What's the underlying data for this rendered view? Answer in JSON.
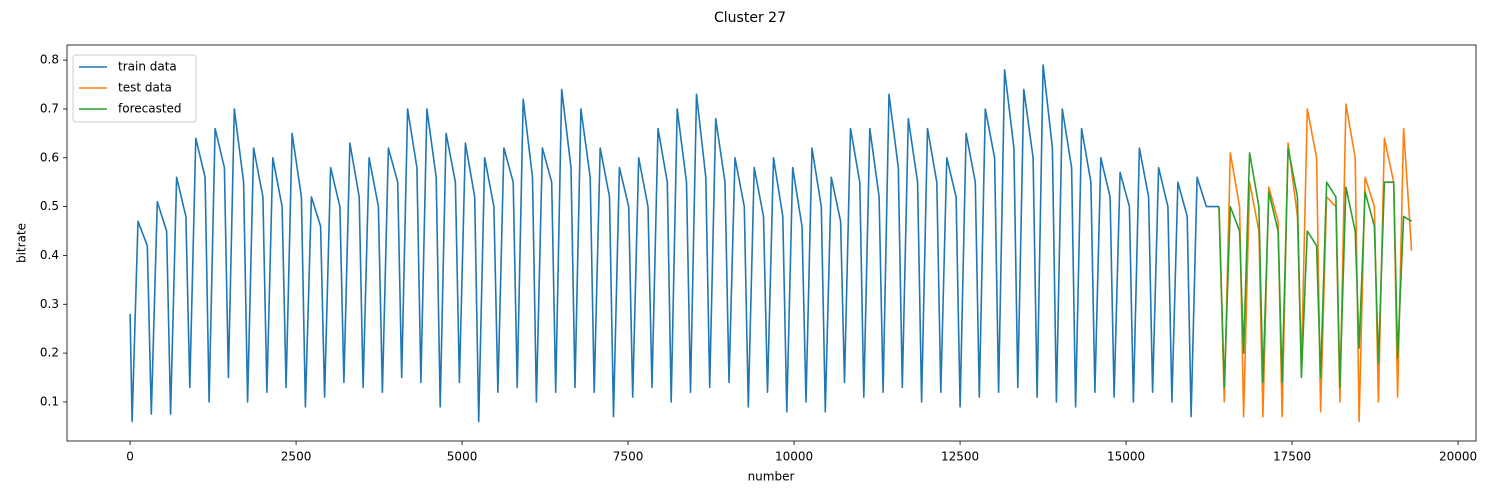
{
  "chart_data": {
    "type": "line",
    "title": "Cluster 27",
    "x_label": "number",
    "y_label": "bitrate",
    "xlim": [
      -950,
      20270
    ],
    "ylim": [
      0.02,
      0.831
    ],
    "xticks": [
      0,
      2500,
      5000,
      7500,
      10000,
      12500,
      15000,
      17500,
      20000
    ],
    "yticks": [
      0.1,
      0.2,
      0.3,
      0.4,
      0.5,
      0.6,
      0.7,
      0.8
    ],
    "legend": "upper left",
    "series": [
      {
        "name": "train data",
        "color": "#1f77b4",
        "x": [
          0,
          30,
          120,
          260,
          320,
          410,
          550,
          610,
          700,
          840,
          900,
          990,
          1130,
          1190,
          1280,
          1420,
          1480,
          1570,
          1710,
          1770,
          1860,
          2000,
          2060,
          2150,
          2290,
          2350,
          2440,
          2580,
          2640,
          2730,
          2870,
          2930,
          3020,
          3160,
          3220,
          3310,
          3450,
          3510,
          3600,
          3740,
          3800,
          3890,
          4030,
          4090,
          4180,
          4320,
          4380,
          4470,
          4610,
          4670,
          4760,
          4900,
          4960,
          5050,
          5190,
          5250,
          5340,
          5480,
          5540,
          5630,
          5770,
          5830,
          5920,
          6060,
          6120,
          6210,
          6350,
          6410,
          6500,
          6640,
          6700,
          6790,
          6930,
          6990,
          7080,
          7220,
          7280,
          7370,
          7510,
          7570,
          7660,
          7800,
          7860,
          7950,
          8090,
          8150,
          8240,
          8380,
          8440,
          8530,
          8670,
          8730,
          8820,
          8960,
          9020,
          9110,
          9250,
          9310,
          9400,
          9540,
          9600,
          9690,
          9830,
          9890,
          9980,
          10120,
          10180,
          10270,
          10410,
          10470,
          10560,
          10700,
          10760,
          10850,
          10990,
          11050,
          11140,
          11280,
          11340,
          11430,
          11570,
          11630,
          11720,
          11860,
          11920,
          12010,
          12150,
          12210,
          12300,
          12440,
          12500,
          12590,
          12730,
          12790,
          12880,
          13020,
          13080,
          13170,
          13310,
          13370,
          13460,
          13600,
          13660,
          13750,
          13890,
          13950,
          14040,
          14180,
          14240,
          14330,
          14470,
          14530,
          14620,
          14760,
          14820,
          14910,
          15050,
          15110,
          15200,
          15340,
          15400,
          15490,
          15630,
          15690,
          15780,
          15920,
          15980,
          16070,
          16210,
          16400
        ],
        "values": [
          0.28,
          0.06,
          0.47,
          0.42,
          0.075,
          0.51,
          0.45,
          0.075,
          0.56,
          0.48,
          0.13,
          0.64,
          0.56,
          0.1,
          0.66,
          0.58,
          0.15,
          0.7,
          0.55,
          0.1,
          0.62,
          0.52,
          0.12,
          0.6,
          0.5,
          0.13,
          0.65,
          0.52,
          0.09,
          0.52,
          0.46,
          0.11,
          0.58,
          0.5,
          0.14,
          0.63,
          0.52,
          0.13,
          0.6,
          0.5,
          0.12,
          0.62,
          0.55,
          0.15,
          0.7,
          0.58,
          0.14,
          0.7,
          0.56,
          0.09,
          0.65,
          0.55,
          0.14,
          0.63,
          0.52,
          0.06,
          0.6,
          0.5,
          0.12,
          0.62,
          0.55,
          0.13,
          0.72,
          0.56,
          0.1,
          0.62,
          0.55,
          0.12,
          0.74,
          0.58,
          0.13,
          0.7,
          0.56,
          0.12,
          0.62,
          0.52,
          0.07,
          0.58,
          0.5,
          0.11,
          0.6,
          0.5,
          0.13,
          0.66,
          0.55,
          0.1,
          0.7,
          0.55,
          0.12,
          0.73,
          0.56,
          0.13,
          0.68,
          0.55,
          0.14,
          0.6,
          0.5,
          0.09,
          0.58,
          0.48,
          0.12,
          0.6,
          0.48,
          0.08,
          0.58,
          0.46,
          0.1,
          0.62,
          0.5,
          0.08,
          0.56,
          0.47,
          0.14,
          0.66,
          0.55,
          0.11,
          0.66,
          0.52,
          0.12,
          0.73,
          0.58,
          0.13,
          0.68,
          0.55,
          0.1,
          0.66,
          0.55,
          0.12,
          0.6,
          0.52,
          0.09,
          0.65,
          0.55,
          0.11,
          0.7,
          0.6,
          0.12,
          0.78,
          0.62,
          0.13,
          0.74,
          0.6,
          0.11,
          0.79,
          0.62,
          0.1,
          0.7,
          0.58,
          0.09,
          0.66,
          0.55,
          0.12,
          0.6,
          0.52,
          0.11,
          0.57,
          0.5,
          0.1,
          0.62,
          0.52,
          0.12,
          0.58,
          0.5,
          0.1,
          0.55,
          0.48,
          0.07,
          0.56,
          0.5,
          0.5
        ]
      },
      {
        "name": "test data",
        "color": "#ff7f0e",
        "x": [
          16400,
          16480,
          16570,
          16710,
          16770,
          16860,
          17000,
          17060,
          17150,
          17290,
          17350,
          17440,
          17580,
          17640,
          17730,
          17870,
          17930,
          18020,
          18160,
          18220,
          18310,
          18450,
          18510,
          18600,
          18740,
          18800,
          18890,
          19030,
          19090,
          19180,
          19300
        ],
        "values": [
          0.5,
          0.1,
          0.61,
          0.5,
          0.07,
          0.55,
          0.45,
          0.07,
          0.54,
          0.47,
          0.07,
          0.63,
          0.48,
          0.17,
          0.7,
          0.6,
          0.08,
          0.52,
          0.5,
          0.1,
          0.71,
          0.6,
          0.06,
          0.56,
          0.5,
          0.1,
          0.64,
          0.55,
          0.11,
          0.66,
          0.41
        ]
      },
      {
        "name": "forecasted",
        "color": "#2ca02c",
        "x": [
          16400,
          16480,
          16570,
          16710,
          16770,
          16860,
          17000,
          17060,
          17150,
          17290,
          17350,
          17440,
          17580,
          17640,
          17730,
          17870,
          17930,
          18020,
          18160,
          18220,
          18310,
          18450,
          18510,
          18600,
          18740,
          18800,
          18890,
          19030,
          19090,
          19180,
          19300
        ],
        "values": [
          0.5,
          0.13,
          0.5,
          0.45,
          0.2,
          0.61,
          0.5,
          0.14,
          0.53,
          0.45,
          0.14,
          0.62,
          0.52,
          0.15,
          0.45,
          0.42,
          0.15,
          0.55,
          0.52,
          0.13,
          0.54,
          0.45,
          0.21,
          0.53,
          0.46,
          0.18,
          0.55,
          0.55,
          0.19,
          0.48,
          0.47
        ]
      }
    ]
  }
}
